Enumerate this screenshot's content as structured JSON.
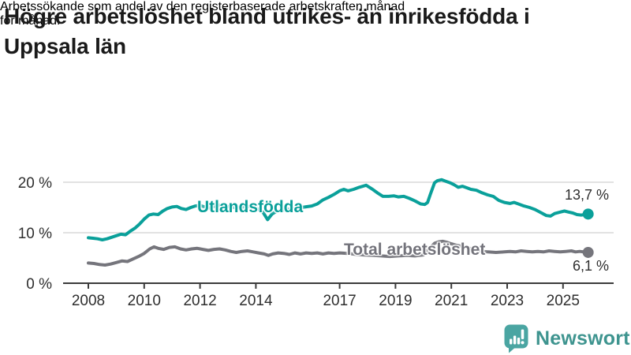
{
  "header": {
    "title": "Högre arbetslöshet bland utrikes- än inrikesfödda i Uppsala län",
    "title_lines": [
      "Högre arbetslöshet bland utrikes- än inrikesfödda i",
      "Uppsala län"
    ],
    "subtitle": "Arbetssökande som andel av den registerbaserade arbetskraften månad för månad.",
    "subtitle_lines": [
      "Arbetssökande som andel av den registerbaserade arbetskraften månad",
      "för månad."
    ]
  },
  "footer": {
    "brand": "Newsworthy"
  },
  "colors": {
    "accent_teal": "#0aa09a",
    "series_gray": "#75757c",
    "grid": "#d8d8d8",
    "axis": "#3b3b3b",
    "tick_text": "#2e2e2e",
    "logo_bubble": "#4aa5a2",
    "logo_text": "#3e948f"
  },
  "chart_data": {
    "type": "line",
    "title": "Högre arbetslöshet bland utrikes- än inrikesfödda i Uppsala län",
    "subtitle": "Arbetssökande som andel av den registerbaserade arbetskraften månad för månad.",
    "xlabel": "",
    "ylabel": "",
    "x_unit": "year (monthly data)",
    "y_unit": "% av registerbaserad arbetskraft",
    "xlim": [
      2007.8,
      2026.3
    ],
    "ylim": [
      0,
      22
    ],
    "grid": "horizontal",
    "legend": "inline-labels",
    "yticks": [
      {
        "value": 0,
        "label": "0 %"
      },
      {
        "value": 10,
        "label": "10 %"
      },
      {
        "value": 20,
        "label": "20 %"
      }
    ],
    "xticks": [
      {
        "value": 2008,
        "label": "2008"
      },
      {
        "value": 2010,
        "label": "2010"
      },
      {
        "value": 2012,
        "label": "2012"
      },
      {
        "value": 2014,
        "label": "2014"
      },
      {
        "value": 2017,
        "label": "2017"
      },
      {
        "value": 2019,
        "label": "2019"
      },
      {
        "value": 2021,
        "label": "2021"
      },
      {
        "value": 2023,
        "label": "2023"
      },
      {
        "value": 2025,
        "label": "2025"
      }
    ],
    "series": [
      {
        "name": "Utlandsfödda",
        "color": "#0aa09a",
        "end_value": 13.7,
        "end_label": "13,7 %",
        "points": [
          [
            2008.0,
            9.0
          ],
          [
            2008.17,
            8.9
          ],
          [
            2008.33,
            8.8
          ],
          [
            2008.5,
            8.6
          ],
          [
            2008.67,
            8.8
          ],
          [
            2008.83,
            9.1
          ],
          [
            2009.0,
            9.4
          ],
          [
            2009.17,
            9.7
          ],
          [
            2009.33,
            9.6
          ],
          [
            2009.5,
            10.3
          ],
          [
            2009.67,
            10.9
          ],
          [
            2009.83,
            11.7
          ],
          [
            2010.0,
            12.7
          ],
          [
            2010.17,
            13.5
          ],
          [
            2010.33,
            13.7
          ],
          [
            2010.5,
            13.6
          ],
          [
            2010.67,
            14.3
          ],
          [
            2010.83,
            14.8
          ],
          [
            2011.0,
            15.1
          ],
          [
            2011.17,
            15.2
          ],
          [
            2011.33,
            14.8
          ],
          [
            2011.5,
            14.6
          ],
          [
            2011.67,
            15.0
          ],
          [
            2011.83,
            15.3
          ],
          [
            2012.0,
            15.4
          ],
          [
            2012.17,
            15.1
          ],
          [
            2012.33,
            14.9
          ],
          [
            2012.5,
            15.2
          ],
          [
            2012.67,
            15.4
          ],
          [
            2012.83,
            15.5
          ],
          [
            2013.0,
            15.2
          ],
          [
            2013.25,
            15.0
          ],
          [
            2013.5,
            15.1
          ],
          [
            2013.75,
            15.2
          ],
          [
            2014.0,
            14.9
          ],
          [
            2014.25,
            14.1
          ],
          [
            2014.42,
            12.6
          ],
          [
            2014.58,
            13.7
          ],
          [
            2014.75,
            14.3
          ],
          [
            2015.0,
            14.5
          ],
          [
            2015.25,
            14.7
          ],
          [
            2015.5,
            14.9
          ],
          [
            2015.75,
            15.1
          ],
          [
            2016.0,
            15.3
          ],
          [
            2016.2,
            15.7
          ],
          [
            2016.4,
            16.5
          ],
          [
            2016.6,
            17.0
          ],
          [
            2016.8,
            17.6
          ],
          [
            2017.0,
            18.3
          ],
          [
            2017.15,
            18.6
          ],
          [
            2017.3,
            18.3
          ],
          [
            2017.5,
            18.6
          ],
          [
            2017.7,
            19.0
          ],
          [
            2017.95,
            19.4
          ],
          [
            2018.15,
            18.7
          ],
          [
            2018.35,
            17.9
          ],
          [
            2018.55,
            17.2
          ],
          [
            2018.75,
            17.2
          ],
          [
            2018.95,
            17.3
          ],
          [
            2019.1,
            17.1
          ],
          [
            2019.3,
            17.2
          ],
          [
            2019.5,
            16.8
          ],
          [
            2019.7,
            16.3
          ],
          [
            2019.9,
            15.7
          ],
          [
            2020.05,
            15.6
          ],
          [
            2020.15,
            16.0
          ],
          [
            2020.25,
            17.6
          ],
          [
            2020.4,
            19.9
          ],
          [
            2020.5,
            20.3
          ],
          [
            2020.65,
            20.5
          ],
          [
            2020.8,
            20.2
          ],
          [
            2020.95,
            19.9
          ],
          [
            2021.1,
            19.5
          ],
          [
            2021.25,
            19.0
          ],
          [
            2021.4,
            19.2
          ],
          [
            2021.55,
            18.9
          ],
          [
            2021.7,
            18.6
          ],
          [
            2021.9,
            18.4
          ],
          [
            2022.1,
            17.9
          ],
          [
            2022.3,
            17.5
          ],
          [
            2022.5,
            17.2
          ],
          [
            2022.7,
            16.4
          ],
          [
            2022.9,
            16.0
          ],
          [
            2023.1,
            15.8
          ],
          [
            2023.25,
            16.0
          ],
          [
            2023.4,
            15.7
          ],
          [
            2023.6,
            15.3
          ],
          [
            2023.8,
            15.0
          ],
          [
            2024.0,
            14.6
          ],
          [
            2024.2,
            14.0
          ],
          [
            2024.4,
            13.4
          ],
          [
            2024.55,
            13.3
          ],
          [
            2024.7,
            13.8
          ],
          [
            2024.9,
            14.1
          ],
          [
            2025.05,
            14.3
          ],
          [
            2025.2,
            14.1
          ],
          [
            2025.35,
            13.9
          ],
          [
            2025.5,
            13.6
          ],
          [
            2025.65,
            13.5
          ],
          [
            2025.9,
            13.7
          ]
        ]
      },
      {
        "name": "Total arbetslöshet",
        "color": "#75757c",
        "end_value": 6.1,
        "end_label": "6,1 %",
        "points": [
          [
            2008.0,
            4.0
          ],
          [
            2008.2,
            3.9
          ],
          [
            2008.4,
            3.7
          ],
          [
            2008.6,
            3.6
          ],
          [
            2008.8,
            3.8
          ],
          [
            2009.0,
            4.1
          ],
          [
            2009.2,
            4.4
          ],
          [
            2009.4,
            4.3
          ],
          [
            2009.6,
            4.8
          ],
          [
            2009.8,
            5.3
          ],
          [
            2010.0,
            5.9
          ],
          [
            2010.2,
            6.8
          ],
          [
            2010.35,
            7.2
          ],
          [
            2010.5,
            6.9
          ],
          [
            2010.7,
            6.7
          ],
          [
            2010.9,
            7.1
          ],
          [
            2011.1,
            7.2
          ],
          [
            2011.3,
            6.8
          ],
          [
            2011.5,
            6.6
          ],
          [
            2011.7,
            6.8
          ],
          [
            2011.9,
            6.9
          ],
          [
            2012.1,
            6.7
          ],
          [
            2012.3,
            6.5
          ],
          [
            2012.5,
            6.7
          ],
          [
            2012.7,
            6.8
          ],
          [
            2012.9,
            6.6
          ],
          [
            2013.1,
            6.3
          ],
          [
            2013.3,
            6.1
          ],
          [
            2013.5,
            6.3
          ],
          [
            2013.7,
            6.4
          ],
          [
            2013.9,
            6.2
          ],
          [
            2014.1,
            6.0
          ],
          [
            2014.3,
            5.8
          ],
          [
            2014.45,
            5.5
          ],
          [
            2014.6,
            5.8
          ],
          [
            2014.8,
            6.0
          ],
          [
            2015.0,
            5.9
          ],
          [
            2015.2,
            5.7
          ],
          [
            2015.4,
            6.0
          ],
          [
            2015.6,
            5.8
          ],
          [
            2015.8,
            6.0
          ],
          [
            2016.0,
            5.9
          ],
          [
            2016.2,
            6.0
          ],
          [
            2016.4,
            5.8
          ],
          [
            2016.6,
            6.0
          ],
          [
            2016.8,
            5.9
          ],
          [
            2017.0,
            6.0
          ],
          [
            2017.3,
            5.9
          ],
          [
            2017.6,
            5.7
          ],
          [
            2017.9,
            5.6
          ],
          [
            2018.2,
            5.5
          ],
          [
            2018.5,
            5.4
          ],
          [
            2018.8,
            5.3
          ],
          [
            2019.1,
            5.4
          ],
          [
            2019.4,
            5.5
          ],
          [
            2019.7,
            5.4
          ],
          [
            2020.0,
            5.6
          ],
          [
            2020.2,
            6.8
          ],
          [
            2020.4,
            7.9
          ],
          [
            2020.55,
            8.2
          ],
          [
            2020.7,
            8.3
          ],
          [
            2020.85,
            8.1
          ],
          [
            2021.0,
            7.8
          ],
          [
            2021.2,
            7.5
          ],
          [
            2021.4,
            7.3
          ],
          [
            2021.6,
            7.0
          ],
          [
            2021.8,
            6.7
          ],
          [
            2022.0,
            6.4
          ],
          [
            2022.3,
            6.2
          ],
          [
            2022.6,
            6.1
          ],
          [
            2022.9,
            6.2
          ],
          [
            2023.1,
            6.3
          ],
          [
            2023.3,
            6.2
          ],
          [
            2023.5,
            6.4
          ],
          [
            2023.7,
            6.3
          ],
          [
            2023.9,
            6.2
          ],
          [
            2024.1,
            6.3
          ],
          [
            2024.3,
            6.2
          ],
          [
            2024.5,
            6.4
          ],
          [
            2024.7,
            6.3
          ],
          [
            2024.9,
            6.2
          ],
          [
            2025.1,
            6.3
          ],
          [
            2025.3,
            6.4
          ],
          [
            2025.45,
            6.2
          ],
          [
            2025.6,
            6.3
          ],
          [
            2025.9,
            6.1
          ]
        ]
      }
    ]
  }
}
